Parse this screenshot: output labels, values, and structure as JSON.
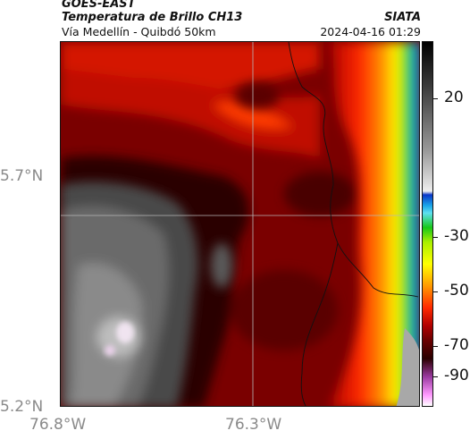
{
  "header": {
    "satellite": "GOES-EAST",
    "product": "Temperatura de Brillo CH13",
    "route": "Vía Medellín - Quibdó 50km",
    "organization": "SIATA",
    "timestamp": "2024-04-16 01:29"
  },
  "axes": {
    "lat_labels": [
      "5.7°N",
      "5.2°N"
    ],
    "lon_labels": [
      "76.8°W",
      "76.3°W"
    ]
  },
  "colorbar": {
    "labels": [
      "20",
      "-30",
      "-50",
      "-70",
      "-90"
    ]
  },
  "colors": {
    "cold_cloud": "#6a0000",
    "warm_edge": "#ff2a00",
    "clear_sky": "#1aa7e8",
    "overshoot_gray": "#9a9a9a"
  }
}
